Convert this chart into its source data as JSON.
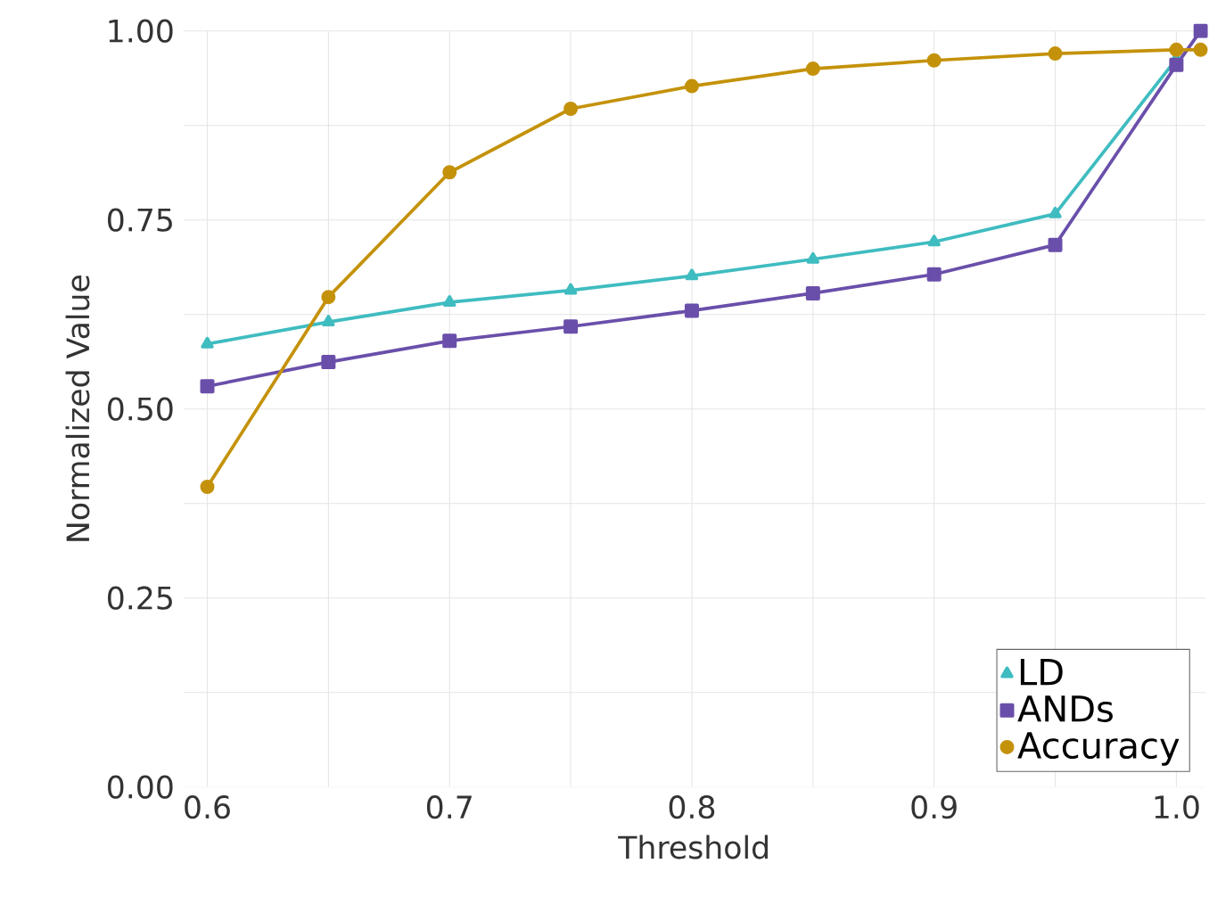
{
  "chart_data": {
    "type": "line",
    "xlabel": "Threshold",
    "ylabel": "Normalized Value",
    "xlim": [
      0.59,
      1.012
    ],
    "ylim": [
      0,
      1.0
    ],
    "xticks": [
      {
        "value": 0.6,
        "label": "0.6"
      },
      {
        "value": 0.65,
        "label": null
      },
      {
        "value": 0.7,
        "label": "0.7"
      },
      {
        "value": 0.75,
        "label": null
      },
      {
        "value": 0.8,
        "label": "0.8"
      },
      {
        "value": 0.85,
        "label": null
      },
      {
        "value": 0.9,
        "label": "0.9"
      },
      {
        "value": 0.95,
        "label": null
      },
      {
        "value": 1.0,
        "label": "1.0"
      }
    ],
    "yticks": [
      {
        "value": 0,
        "label": "0.00"
      },
      {
        "value": 0.125,
        "label": null
      },
      {
        "value": 0.25,
        "label": "0.25"
      },
      {
        "value": 0.375,
        "label": null
      },
      {
        "value": 0.5,
        "label": "0.50"
      },
      {
        "value": 0.625,
        "label": null
      },
      {
        "value": 0.75,
        "label": "0.75"
      },
      {
        "value": 0.875,
        "label": null
      },
      {
        "value": 1.0,
        "label": "1.00"
      }
    ],
    "grid": true,
    "legend": "bottom right",
    "series": [
      {
        "name": "LD",
        "color": "#3fbcc0",
        "marker": "triangle",
        "x": [
          0.6,
          0.65,
          0.7,
          0.75,
          0.8,
          0.85,
          0.9,
          0.95,
          1.0
        ],
        "values": [
          0.586,
          0.615,
          0.641,
          0.657,
          0.676,
          0.698,
          0.721,
          0.758,
          0.963
        ]
      },
      {
        "name": "ANDs",
        "color": "#6a4faa",
        "marker": "square",
        "x": [
          0.6,
          0.65,
          0.7,
          0.75,
          0.8,
          0.85,
          0.9,
          0.95,
          1.0,
          1.01
        ],
        "values": [
          0.53,
          0.562,
          0.59,
          0.609,
          0.63,
          0.653,
          0.678,
          0.717,
          0.955,
          1.0
        ]
      },
      {
        "name": "Accuracy",
        "color": "#c4920a",
        "marker": "circle",
        "x": [
          0.6,
          0.65,
          0.7,
          0.75,
          0.8,
          0.85,
          0.9,
          0.95,
          1.0,
          1.01
        ],
        "values": [
          0.397,
          0.648,
          0.813,
          0.897,
          0.927,
          0.95,
          0.961,
          0.97,
          0.975,
          0.975
        ]
      }
    ]
  }
}
